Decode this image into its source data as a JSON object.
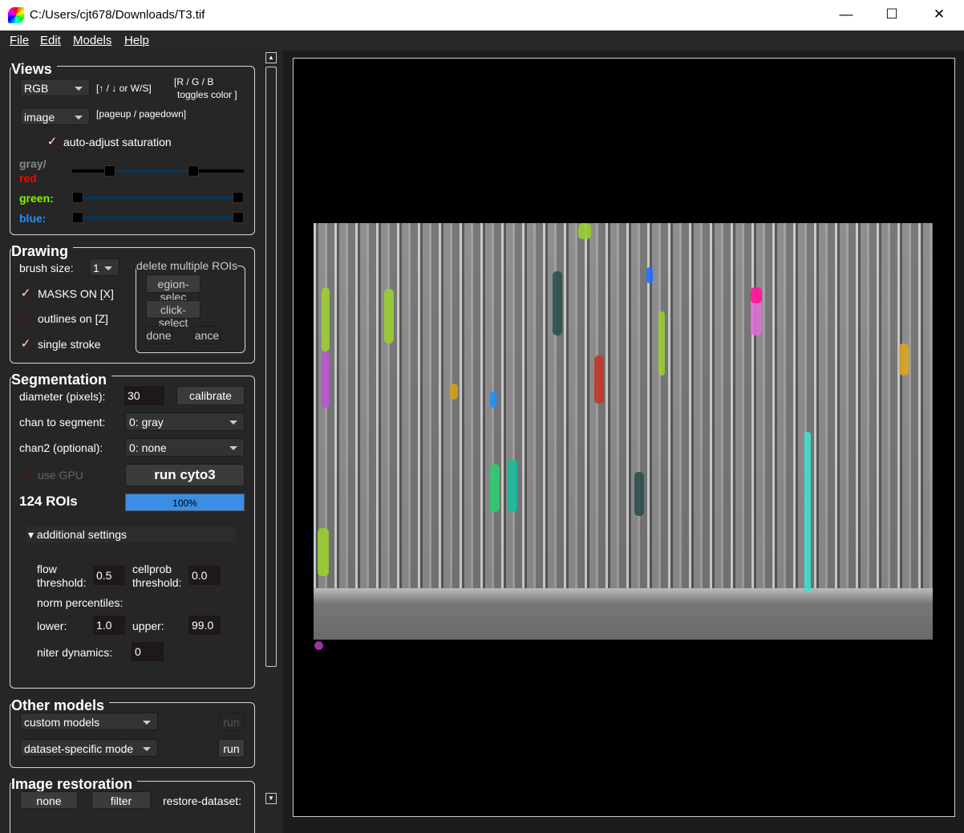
{
  "window": {
    "title": "C:/Users/cjt678/Downloads/T3.tif",
    "minimize": "—",
    "maximize": "☐",
    "close": "✕"
  },
  "menu": [
    "File",
    "Edit",
    "Models",
    "Help"
  ],
  "views": {
    "title": "Views",
    "color_mode": "RGB",
    "color_hint": "[↑ / ↓ or W/S]",
    "rgb_hint1": "[R / G / B",
    "rgb_hint2": "toggles color ]",
    "view_mode": "image",
    "page_hint": "[pageup / pagedown]",
    "auto_adjust": "auto-adjust saturation",
    "auto_adjust_checked": true,
    "gray_label": "gray/",
    "red_label": "red",
    "green_label": "green:",
    "blue_label": "blue:",
    "colors": {
      "gray": "#888888",
      "red": "#ff0000",
      "green": "#7cfc00",
      "blue": "#1e90ff"
    }
  },
  "drawing": {
    "title": "Drawing",
    "brush_label": "brush size:",
    "brush_value": "1",
    "masks_on": "MASKS ON [X]",
    "masks_checked": true,
    "outlines_on": "outlines on [Z]",
    "outlines_checked": false,
    "single_stroke": "single stroke",
    "single_checked": true,
    "delete_title": "delete multiple ROIs",
    "region_select": "egion-selec",
    "click_select": "click-select",
    "done": "done",
    "cancel": "ance"
  },
  "segmentation": {
    "title": "Segmentation",
    "diameter_label": "diameter (pixels):",
    "diameter": "30",
    "calibrate": "calibrate",
    "chan_label": "chan to segment:",
    "chan": "0: gray",
    "chan2_label": "chan2 (optional):",
    "chan2": "0: none",
    "gpu": "use GPU",
    "run": "run cyto3",
    "rois": "124 ROIs",
    "progress": "100%",
    "progress_value": 100,
    "additional": "▾ additional settings",
    "flow_label1": "flow",
    "flow_label2": "threshold:",
    "flow": "0.5",
    "cellprob_label1": "cellprob",
    "cellprob_label2": "threshold:",
    "cellprob": "0.0",
    "norm": "norm percentiles:",
    "lower_label": "lower:",
    "lower": "1.0",
    "upper_label": "upper:",
    "upper": "99.0",
    "niter_label": "niter dynamics:",
    "niter": "0"
  },
  "other_models": {
    "title": "Other models",
    "custom": "custom models",
    "run1": "run",
    "dataset": "dataset-specific mode",
    "run2": "run"
  },
  "restoration": {
    "title": "Image restoration",
    "none": "none",
    "filter": "filter",
    "restore": "restore-dataset:"
  }
}
